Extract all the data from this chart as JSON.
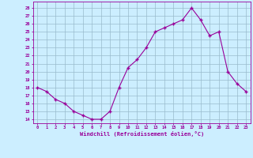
{
  "x": [
    0,
    1,
    2,
    3,
    4,
    5,
    6,
    7,
    8,
    9,
    10,
    11,
    12,
    13,
    14,
    15,
    16,
    17,
    18,
    19,
    20,
    21,
    22,
    23
  ],
  "y": [
    18,
    17.5,
    16.5,
    16,
    15,
    14.5,
    14,
    14,
    15,
    18,
    20.5,
    21.5,
    23,
    25,
    25.5,
    26,
    26.5,
    28,
    26.5,
    24.5,
    25,
    20,
    18.5,
    17.5
  ],
  "line_color": "#990099",
  "marker_color": "#990099",
  "bg_color": "#cceeff",
  "grid_color": "#99bbcc",
  "ylabel_ticks": [
    14,
    15,
    16,
    17,
    18,
    19,
    20,
    21,
    22,
    23,
    24,
    25,
    26,
    27,
    28
  ],
  "xlabel": "Windchill (Refroidissement éolien,°C)",
  "xlim": [
    -0.5,
    23.5
  ],
  "ylim": [
    13.5,
    28.8
  ],
  "tick_label_color": "#990099",
  "font": "monospace"
}
